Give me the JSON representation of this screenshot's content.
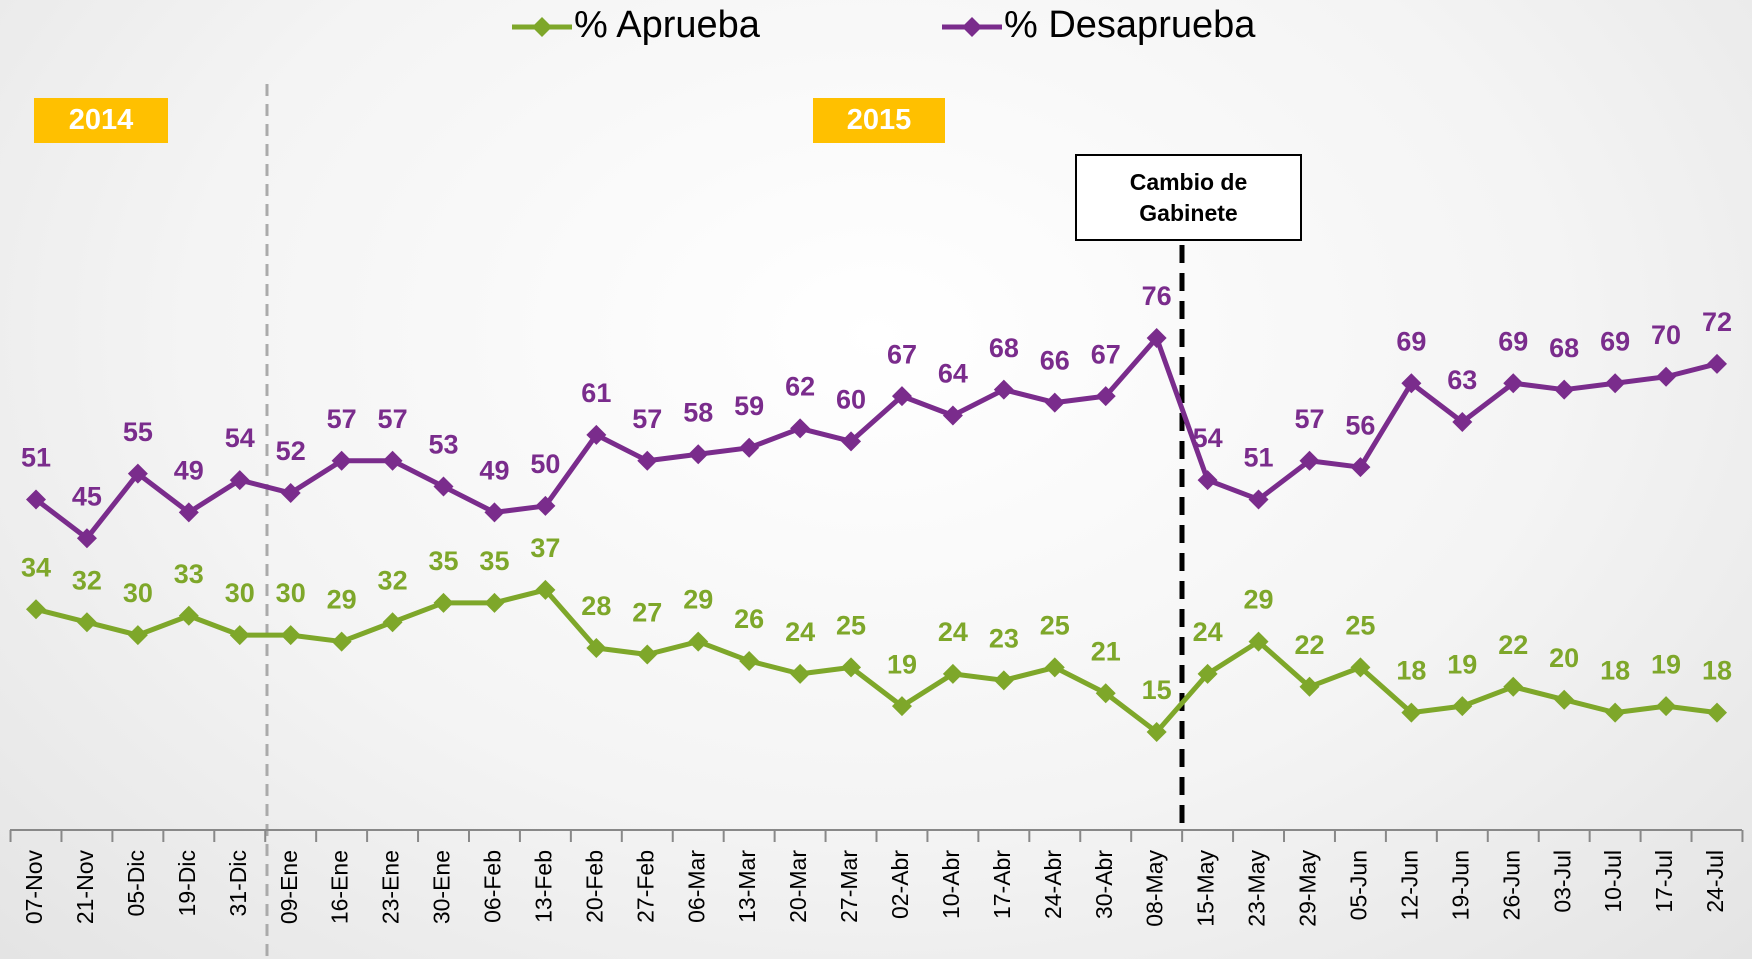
{
  "chart_data": {
    "type": "line",
    "categories": [
      "07-Nov",
      "21-Nov",
      "05-Dic",
      "19-Dic",
      "31-Dic",
      "09-Ene",
      "16-Ene",
      "23-Ene",
      "30-Ene",
      "06-Feb",
      "13-Feb",
      "20-Feb",
      "27-Feb",
      "06-Mar",
      "13-Mar",
      "20-Mar",
      "27-Mar",
      "02-Abr",
      "10-Abr",
      "17-Abr",
      "24-Abr",
      "30-Abr",
      "08-May",
      "15-May",
      "23-May",
      "29-May",
      "05-Jun",
      "12-Jun",
      "19-Jun",
      "26-Jun",
      "03-Jul",
      "10-Jul",
      "17-Jul",
      "24-Jul"
    ],
    "series": [
      {
        "name": "% Aprueba",
        "color": "#7ea72a",
        "values": [
          34,
          32,
          30,
          33,
          30,
          30,
          29,
          32,
          35,
          35,
          37,
          28,
          27,
          29,
          26,
          24,
          25,
          19,
          24,
          23,
          25,
          21,
          15,
          24,
          29,
          22,
          25,
          18,
          19,
          22,
          20,
          18,
          19,
          18
        ]
      },
      {
        "name": "% Desaprueba",
        "color": "#7a2c8c",
        "values": [
          51,
          45,
          55,
          49,
          54,
          52,
          57,
          57,
          53,
          49,
          50,
          61,
          57,
          58,
          59,
          62,
          60,
          67,
          64,
          68,
          66,
          67,
          76,
          54,
          51,
          57,
          56,
          69,
          63,
          69,
          68,
          69,
          70,
          72
        ]
      }
    ],
    "legend": "top",
    "annotations": [
      {
        "text": "2014"
      },
      {
        "text": "2015"
      },
      {
        "text": "Cambio de Gabinete"
      }
    ]
  }
}
